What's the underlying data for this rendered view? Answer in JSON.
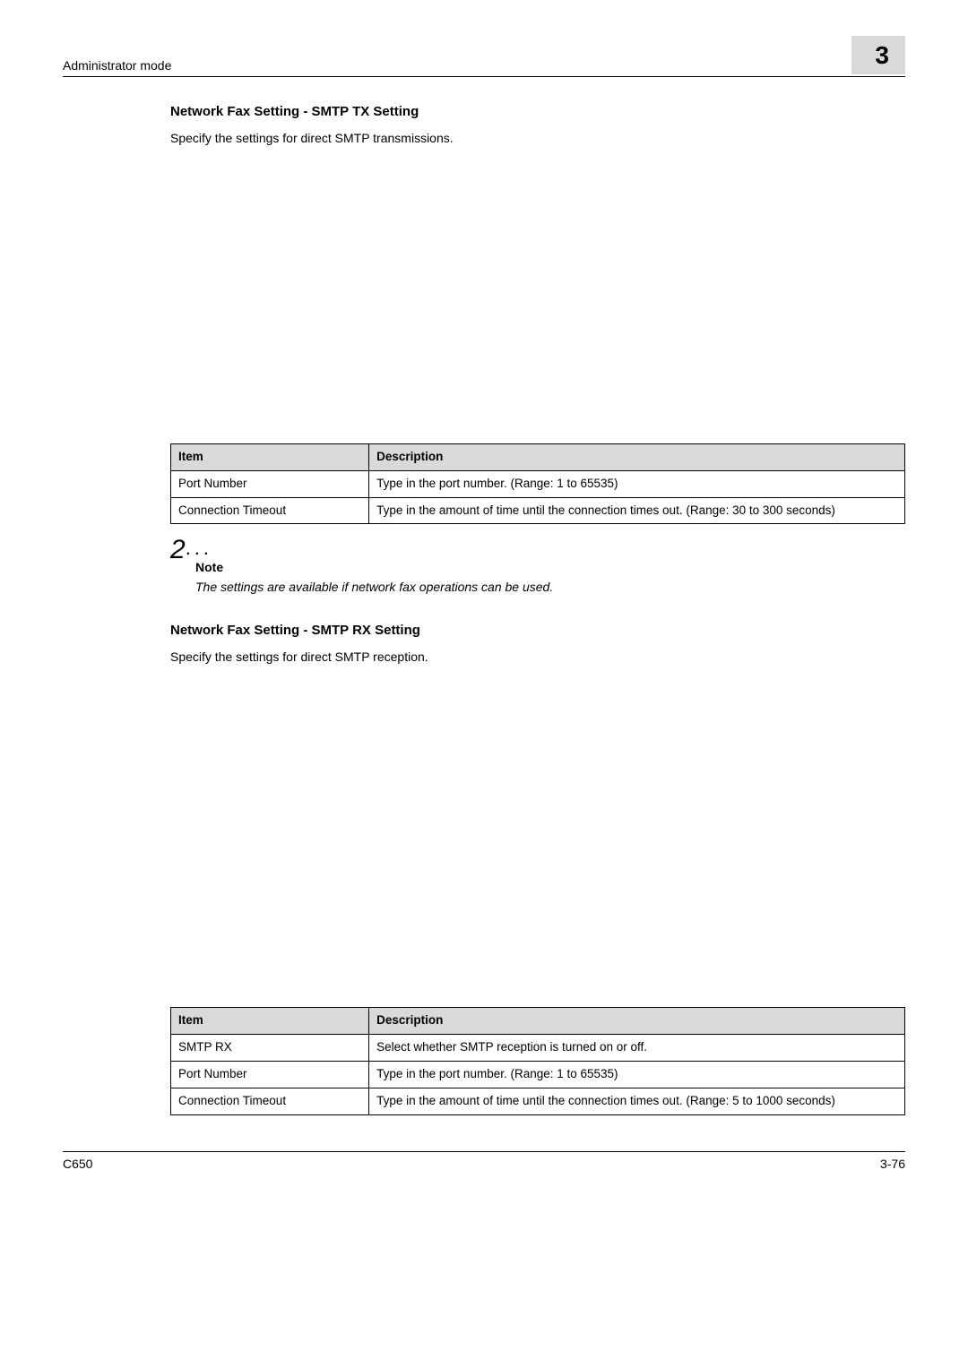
{
  "header": {
    "left": "Administrator mode",
    "page_big": "3"
  },
  "sec1": {
    "title": "Network Fax Setting - SMTP TX Setting",
    "desc": "Specify the settings for direct SMTP transmissions."
  },
  "tx_table": {
    "headers": {
      "item": "Item",
      "desc": "Description"
    },
    "rows": [
      {
        "item": "Port Number",
        "desc": "Type in the port number. (Range: 1 to 65535)"
      },
      {
        "item": "Connection Timeout",
        "desc": "Type in the amount of time until the connection times out. (Range: 30 to 300 seconds)"
      }
    ]
  },
  "note": {
    "label": "Note",
    "text": "The settings are available if network fax operations can be used."
  },
  "sec2": {
    "title": "Network Fax Setting - SMTP RX Setting",
    "desc": "Specify the settings for direct SMTP reception."
  },
  "rx_table": {
    "headers": {
      "item": "Item",
      "desc": "Description"
    },
    "rows": [
      {
        "item": "SMTP RX",
        "desc": "Select whether SMTP reception is turned on or off."
      },
      {
        "item": "Port Number",
        "desc": "Type in the port number. (Range: 1 to 65535)"
      },
      {
        "item": "Connection Timeout",
        "desc": "Type in the amount of time until the connection times out. (Range: 5 to 1000 seconds)"
      }
    ]
  },
  "footer": {
    "left": "C650",
    "right": "3-76"
  }
}
